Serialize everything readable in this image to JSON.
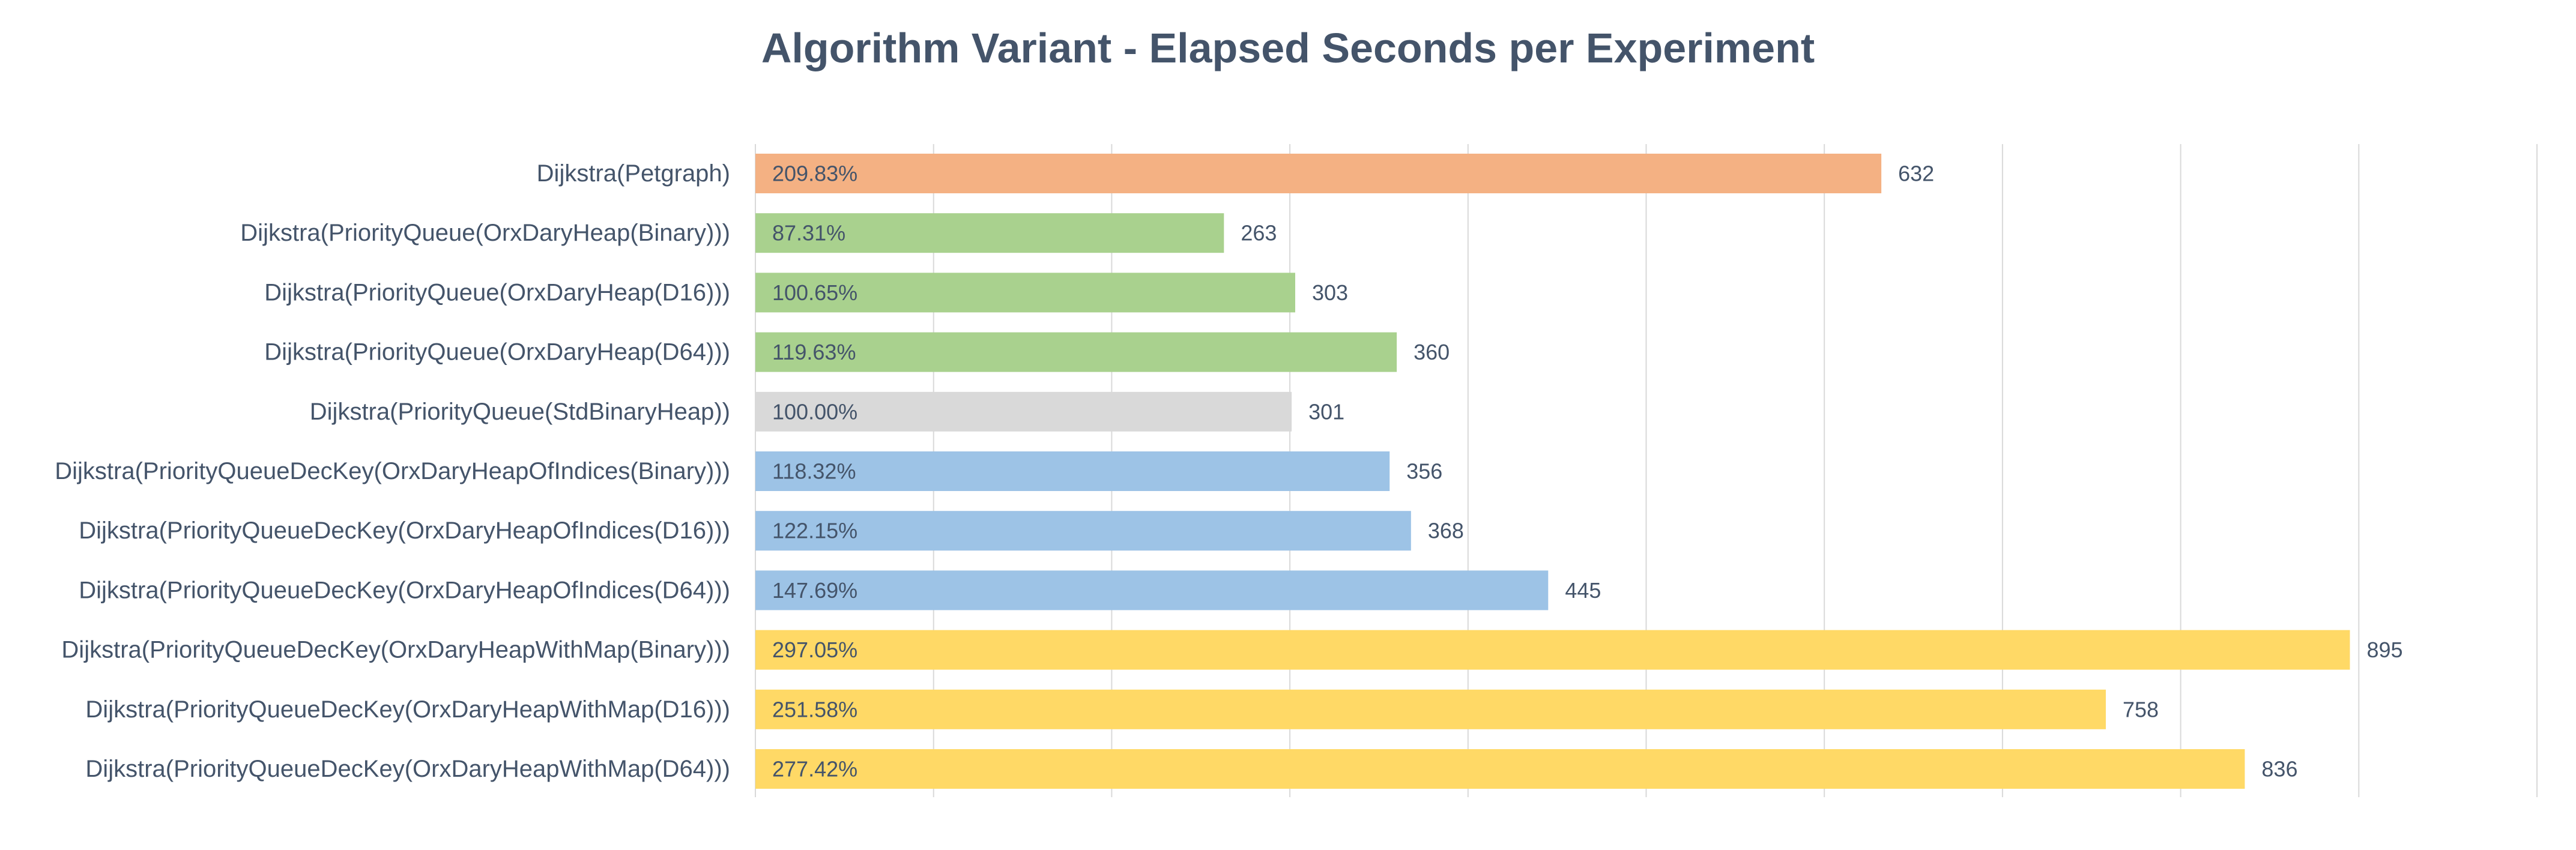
{
  "chart_data": {
    "type": "bar",
    "orientation": "horizontal",
    "title": "Algorithm Variant - Elapsed Seconds per Experiment",
    "xlim": [
      0,
      1000
    ],
    "grid": true,
    "categories": [
      "Dijkstra(Petgraph)",
      "Dijkstra(PriorityQueue(OrxDaryHeap(Binary)))",
      "Dijkstra(PriorityQueue(OrxDaryHeap(D16)))",
      "Dijkstra(PriorityQueue(OrxDaryHeap(D64)))",
      "Dijkstra(PriorityQueue(StdBinaryHeap))",
      "Dijkstra(PriorityQueueDecKey(OrxDaryHeapOfIndices(Binary)))",
      "Dijkstra(PriorityQueueDecKey(OrxDaryHeapOfIndices(D16)))",
      "Dijkstra(PriorityQueueDecKey(OrxDaryHeapOfIndices(D64)))",
      "Dijkstra(PriorityQueueDecKey(OrxDaryHeapWithMap(Binary)))",
      "Dijkstra(PriorityQueueDecKey(OrxDaryHeapWithMap(D16)))",
      "Dijkstra(PriorityQueueDecKey(OrxDaryHeapWithMap(D64)))"
    ],
    "values": [
      632,
      263,
      303,
      360,
      301,
      356,
      368,
      445,
      895,
      758,
      836
    ],
    "percent_labels": [
      "209.83%",
      "87.31%",
      "100.65%",
      "119.63%",
      "100.00%",
      "118.32%",
      "122.15%",
      "147.69%",
      "297.05%",
      "251.58%",
      "277.42%"
    ],
    "colors": [
      "#f4b183",
      "#a9d18e",
      "#a9d18e",
      "#a9d18e",
      "#d9d9d9",
      "#9dc3e6",
      "#9dc3e6",
      "#9dc3e6",
      "#ffd966",
      "#ffd966",
      "#ffd966"
    ]
  }
}
